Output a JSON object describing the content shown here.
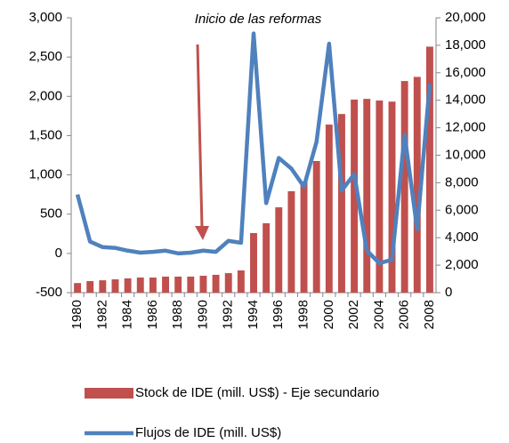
{
  "chart_data": {
    "type": "bar",
    "annotation": "Inicio de las reformas",
    "categories": [
      "1980",
      null,
      "1982",
      null,
      "1984",
      null,
      "1986",
      null,
      "1988",
      null,
      "1990",
      null,
      "1992",
      null,
      "1994",
      null,
      "1996",
      null,
      "1998",
      null,
      "2000",
      null,
      "2002",
      null,
      "2004",
      null,
      "2006",
      null,
      "2008"
    ],
    "series": [
      {
        "name": "Stock de IDE (mill. US$) - Eje secundario",
        "type": "bar",
        "axis": "y2",
        "color": "#c0504d",
        "values": [
          700,
          840,
          900,
          970,
          1040,
          1100,
          1100,
          1170,
          1170,
          1170,
          1230,
          1300,
          1420,
          1620,
          4340,
          5050,
          6210,
          7380,
          8090,
          9580,
          12230,
          13000,
          14050,
          14100,
          13980,
          13900,
          15400,
          15700,
          17900
        ]
      },
      {
        "name": "Flujos de IDE (mill. US$)",
        "type": "line",
        "color": "#4f81bd",
        "values": [
          750,
          150,
          80,
          70,
          35,
          10,
          20,
          35,
          0,
          10,
          35,
          20,
          160,
          135,
          2800,
          640,
          1215,
          1080,
          850,
          1420,
          2670,
          800,
          1010,
          35,
          -125,
          -80,
          1510,
          310,
          2160
        ]
      }
    ],
    "ylim": [
      -500,
      3000
    ],
    "yticks": [
      -500,
      0,
      500,
      {
        "value": 1000,
        "label": "1,000"
      },
      {
        "value": 1500,
        "label": "1,500"
      },
      {
        "value": 2000,
        "label": "2,000"
      },
      {
        "value": 2500,
        "label": "2,500"
      },
      {
        "value": 3000,
        "label": "3,000"
      }
    ],
    "y2lim": [
      0,
      20000
    ],
    "y2ticks": [
      0,
      {
        "value": 2000,
        "label": "2,000"
      },
      {
        "value": 4000,
        "label": "4,000"
      },
      {
        "value": 6000,
        "label": "6,000"
      },
      {
        "value": 8000,
        "label": "8,000"
      },
      {
        "value": 10000,
        "label": "10,000"
      },
      {
        "value": 12000,
        "label": "12,000"
      },
      {
        "value": 14000,
        "label": "14,000"
      },
      {
        "value": 16000,
        "label": "16,000"
      },
      {
        "value": 18000,
        "label": "18,000"
      },
      {
        "value": 20000,
        "label": "20,000"
      }
    ],
    "grid": false
  }
}
